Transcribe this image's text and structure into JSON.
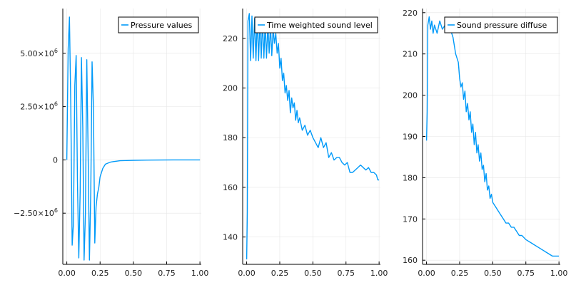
{
  "colors": {
    "series": "#009AF9",
    "axis": "#000000",
    "grid": "#E6E6E6",
    "background": "#FFFFFF"
  },
  "chart_data": [
    {
      "type": "line",
      "title": "",
      "xlabel": "",
      "ylabel": "",
      "xlim": [
        -0.03,
        1.01
      ],
      "ylim": [
        -4900000.0,
        7100000.0
      ],
      "xticks": [
        {
          "value": 0,
          "label": "0.00"
        },
        {
          "value": 0.25,
          "label": "0.25"
        },
        {
          "value": 0.5,
          "label": "0.50"
        },
        {
          "value": 0.75,
          "label": "0.75"
        },
        {
          "value": 1,
          "label": "1.00"
        }
      ],
      "yticks": [
        {
          "value": -2500000,
          "label": "−2.50×10",
          "exp": "6"
        },
        {
          "value": 0,
          "label": "0",
          "exp": ""
        },
        {
          "value": 2500000,
          "label": "2.50×10",
          "exp": "6"
        },
        {
          "value": 5000000,
          "label": "5.00×10",
          "exp": "6"
        }
      ],
      "grid": true,
      "legend_position": "top-right",
      "series": [
        {
          "name": "Pressure values",
          "x": [
            0.0,
            0.01,
            0.02,
            0.03,
            0.04,
            0.05,
            0.06,
            0.07,
            0.08,
            0.09,
            0.1,
            0.11,
            0.12,
            0.13,
            0.14,
            0.15,
            0.16,
            0.17,
            0.18,
            0.19,
            0.2,
            0.21,
            0.22,
            0.23,
            0.24,
            0.25,
            0.27,
            0.29,
            0.31,
            0.33,
            0.35,
            0.4,
            0.45,
            0.5,
            0.6,
            0.7,
            0.8,
            0.9,
            1.0
          ],
          "y": [
            0,
            5200000,
            6700000,
            2500000,
            -4000000,
            -3000000,
            3500000,
            4900000,
            -1000000,
            -4600000,
            -1500000,
            4800000,
            1500000,
            -4700000,
            -2500000,
            4700000,
            500000,
            -4700000,
            -1500000,
            4600000,
            2500000,
            -3900000,
            -2200000,
            -1600000,
            -1300000,
            -800000,
            -400000,
            -200000,
            -150000,
            -100000,
            -80000,
            -40000,
            -30000,
            -20000,
            -10000,
            -5000,
            0,
            0,
            0
          ]
        }
      ]
    },
    {
      "type": "line",
      "title": "",
      "xlabel": "",
      "ylabel": "",
      "xlim": [
        -0.03,
        1.01
      ],
      "ylim": [
        129,
        232
      ],
      "xticks": [
        {
          "value": 0,
          "label": "0.00"
        },
        {
          "value": 0.25,
          "label": "0.25"
        },
        {
          "value": 0.5,
          "label": "0.50"
        },
        {
          "value": 0.75,
          "label": "0.75"
        },
        {
          "value": 1,
          "label": "1.00"
        }
      ],
      "yticks": [
        {
          "value": 140,
          "label": "140",
          "exp": ""
        },
        {
          "value": 160,
          "label": "160",
          "exp": ""
        },
        {
          "value": 180,
          "label": "180",
          "exp": ""
        },
        {
          "value": 200,
          "label": "200",
          "exp": ""
        },
        {
          "value": 220,
          "label": "220",
          "exp": ""
        }
      ],
      "grid": true,
      "legend_position": "top-right",
      "series": [
        {
          "name": "Time weighted sound level",
          "x": [
            0.0,
            0.005,
            0.01,
            0.02,
            0.03,
            0.04,
            0.05,
            0.06,
            0.07,
            0.08,
            0.09,
            0.1,
            0.11,
            0.12,
            0.13,
            0.14,
            0.15,
            0.16,
            0.17,
            0.18,
            0.19,
            0.2,
            0.21,
            0.22,
            0.23,
            0.24,
            0.25,
            0.26,
            0.27,
            0.28,
            0.29,
            0.3,
            0.31,
            0.32,
            0.33,
            0.34,
            0.35,
            0.36,
            0.37,
            0.38,
            0.39,
            0.4,
            0.42,
            0.44,
            0.46,
            0.48,
            0.5,
            0.52,
            0.54,
            0.56,
            0.58,
            0.6,
            0.62,
            0.64,
            0.66,
            0.68,
            0.7,
            0.72,
            0.74,
            0.76,
            0.78,
            0.8,
            0.82,
            0.84,
            0.86,
            0.88,
            0.9,
            0.92,
            0.94,
            0.96,
            0.98,
            0.99,
            1.0
          ],
          "y": [
            131,
            150,
            227,
            230,
            211,
            229,
            212,
            228,
            211,
            228,
            211,
            228,
            212,
            227,
            212,
            226,
            212,
            226,
            214,
            225,
            213,
            224,
            218,
            222,
            214,
            218,
            208,
            212,
            203,
            206,
            198,
            201,
            195,
            199,
            190,
            196,
            192,
            194,
            187,
            191,
            186,
            188,
            183,
            185,
            181,
            183,
            180,
            178,
            176,
            180,
            176,
            178,
            172,
            174,
            171,
            172,
            172,
            170,
            169,
            170,
            166,
            166,
            167,
            168,
            169,
            168,
            167,
            168,
            166,
            166,
            165,
            163,
            163
          ]
        }
      ]
    },
    {
      "type": "line",
      "title": "",
      "xlabel": "",
      "ylabel": "",
      "xlim": [
        -0.03,
        1.01
      ],
      "ylim": [
        159,
        221
      ],
      "xticks": [
        {
          "value": 0,
          "label": "0.00"
        },
        {
          "value": 0.25,
          "label": "0.25"
        },
        {
          "value": 0.5,
          "label": "0.50"
        },
        {
          "value": 0.75,
          "label": "0.75"
        },
        {
          "value": 1,
          "label": "1.00"
        }
      ],
      "yticks": [
        {
          "value": 160,
          "label": "160",
          "exp": ""
        },
        {
          "value": 170,
          "label": "170",
          "exp": ""
        },
        {
          "value": 180,
          "label": "180",
          "exp": ""
        },
        {
          "value": 190,
          "label": "190",
          "exp": ""
        },
        {
          "value": 200,
          "label": "200",
          "exp": ""
        },
        {
          "value": 210,
          "label": "210",
          "exp": ""
        },
        {
          "value": 220,
          "label": "220",
          "exp": ""
        }
      ],
      "grid": true,
      "legend_position": "top-right",
      "series": [
        {
          "name": "Sound pressure diffuse",
          "x": [
            0.0,
            0.005,
            0.01,
            0.02,
            0.03,
            0.04,
            0.05,
            0.06,
            0.08,
            0.1,
            0.12,
            0.14,
            0.16,
            0.18,
            0.2,
            0.22,
            0.24,
            0.25,
            0.26,
            0.27,
            0.28,
            0.29,
            0.3,
            0.31,
            0.32,
            0.33,
            0.34,
            0.35,
            0.36,
            0.37,
            0.38,
            0.39,
            0.4,
            0.41,
            0.42,
            0.43,
            0.44,
            0.45,
            0.46,
            0.47,
            0.48,
            0.49,
            0.5,
            0.52,
            0.54,
            0.56,
            0.58,
            0.6,
            0.62,
            0.64,
            0.66,
            0.68,
            0.7,
            0.72,
            0.75,
            0.8,
            0.85,
            0.9,
            0.95,
            1.0
          ],
          "y": [
            189,
            196,
            217,
            219,
            216,
            218,
            215,
            217,
            215,
            218,
            216,
            217,
            216,
            216,
            214,
            210,
            208,
            204,
            202,
            203,
            199,
            201,
            196,
            198,
            194,
            196,
            191,
            193,
            188,
            191,
            186,
            188,
            184,
            186,
            182,
            183,
            179,
            181,
            177,
            178,
            175,
            176,
            174,
            173,
            172,
            171,
            170,
            169,
            169,
            168,
            168,
            167,
            166,
            166,
            165,
            164,
            163,
            162,
            161,
            161
          ]
        }
      ]
    }
  ]
}
